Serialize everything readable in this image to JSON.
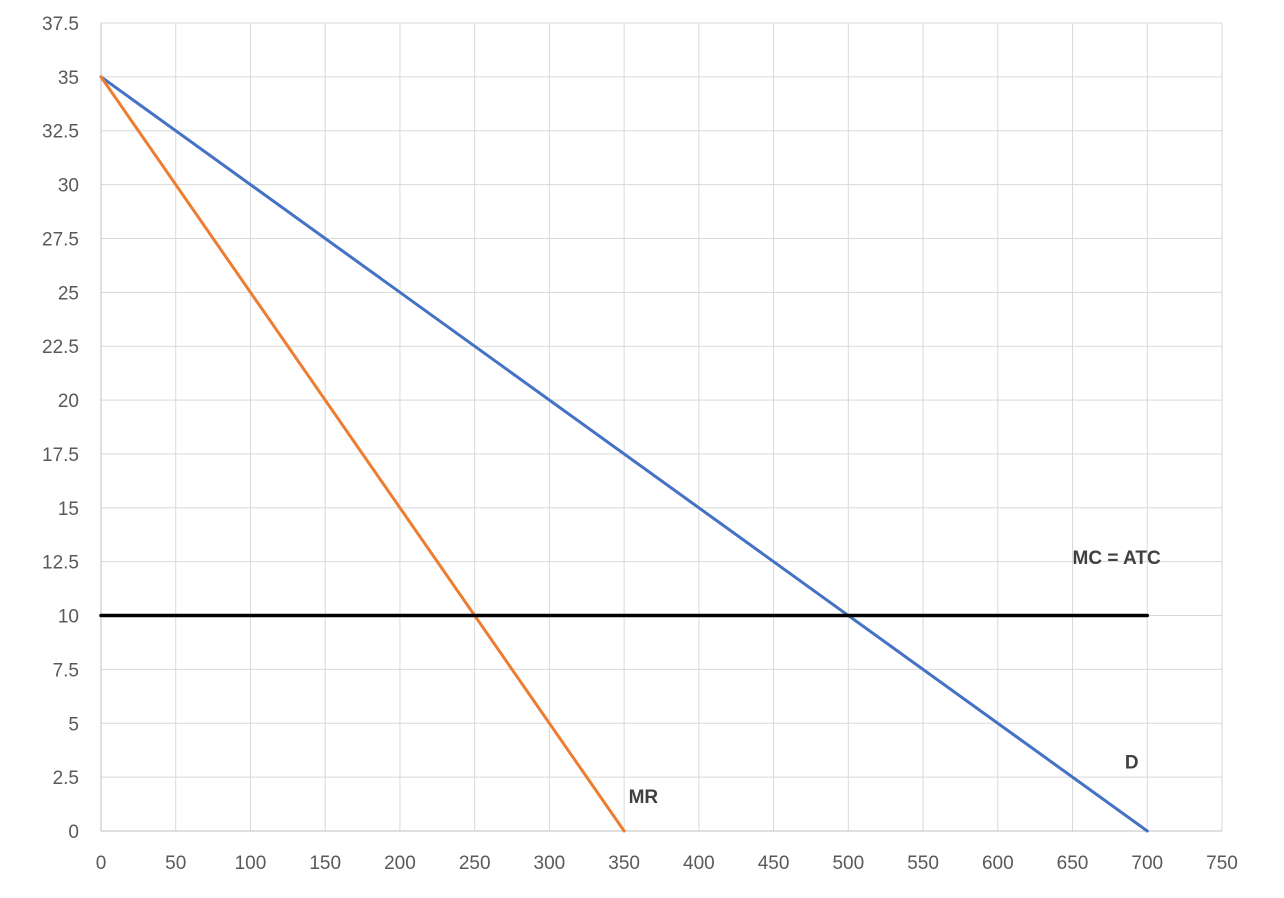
{
  "chart_data": {
    "type": "line",
    "title": "",
    "xlabel": "",
    "ylabel": "",
    "xlim": [
      0,
      750
    ],
    "ylim": [
      0,
      37.5
    ],
    "x_ticks": [
      "0",
      "50",
      "100",
      "150",
      "200",
      "250",
      "300",
      "350",
      "400",
      "450",
      "500",
      "550",
      "600",
      "650",
      "700",
      "750"
    ],
    "y_ticks": [
      "0",
      "2.5",
      "5",
      "7.5",
      "10",
      "12.5",
      "15",
      "17.5",
      "20",
      "22.5",
      "25",
      "27.5",
      "30",
      "32.5",
      "35",
      "37.5"
    ],
    "grid": true,
    "legend": "none",
    "series": [
      {
        "name": "D",
        "color": "#4472c4",
        "points": [
          [
            0,
            35
          ],
          [
            700,
            0
          ]
        ]
      },
      {
        "name": "MR",
        "color": "#ed7d31",
        "points": [
          [
            0,
            35
          ],
          [
            350,
            0
          ]
        ]
      },
      {
        "name": "MC = ATC",
        "color": "#000000",
        "points": [
          [
            0,
            10
          ],
          [
            700,
            10
          ]
        ]
      }
    ],
    "annotations": [
      {
        "text": "MC = ATC",
        "x": 650,
        "y": 12.4
      },
      {
        "text": "D",
        "x": 685,
        "y": 2.9
      },
      {
        "text": "MR",
        "x": 353,
        "y": 1.3
      }
    ]
  }
}
